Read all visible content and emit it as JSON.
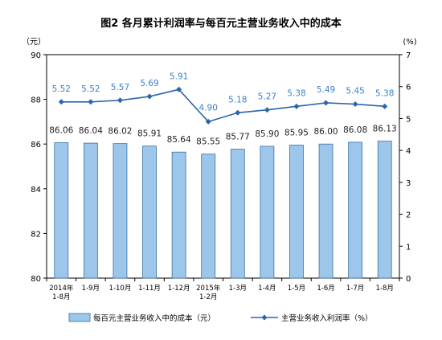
{
  "chart_data": {
    "type": "bar",
    "title": "图2  各月累计利润率与每百元主营业务收入中的成本",
    "categories": [
      "2014年\n1-8月",
      "1-9月",
      "1-10月",
      "1-11月",
      "1-12月",
      "2015年\n1-2月",
      "1-3月",
      "1-4月",
      "1-5月",
      "1-6月",
      "1-7月",
      "1-8月"
    ],
    "left_axis": {
      "unit_label": "（元）",
      "ylim": [
        80,
        90
      ],
      "ticks": [
        80,
        82,
        84,
        86,
        88,
        90
      ]
    },
    "right_axis": {
      "unit_label": "(%)",
      "ylim": [
        0,
        7
      ],
      "ticks": [
        0,
        1,
        2,
        3,
        4,
        5,
        6,
        7
      ]
    },
    "series": [
      {
        "name": "每百元主营业务收入中的成本（元）",
        "type": "bar",
        "axis": "left",
        "values": [
          86.06,
          86.04,
          86.02,
          85.91,
          85.64,
          85.55,
          85.77,
          85.9,
          85.95,
          86.0,
          86.08,
          86.13
        ],
        "labels": [
          "86.06",
          "86.04",
          "86.02",
          "85.91",
          "85.64",
          "85.55",
          "85.77",
          "85.90",
          "85.95",
          "86.00",
          "86.08",
          "86.13"
        ]
      },
      {
        "name": "主营业务收入利润率（%）",
        "type": "line",
        "axis": "right",
        "values": [
          5.52,
          5.52,
          5.57,
          5.69,
          5.91,
          4.9,
          5.18,
          5.27,
          5.38,
          5.49,
          5.45,
          5.38
        ],
        "labels": [
          "5.52",
          "5.52",
          "5.57",
          "5.69",
          "5.91",
          "4.90",
          "5.18",
          "5.27",
          "5.38",
          "5.49",
          "5.45",
          "5.38"
        ]
      }
    ],
    "grid": false,
    "legend": "bottom",
    "colors": {
      "bar_fill": "#9cc7ea",
      "bar_stroke": "#3b6fa5",
      "line": "#2a66ad",
      "bar_label": "#222222",
      "line_label": "#3f7fc7"
    }
  }
}
